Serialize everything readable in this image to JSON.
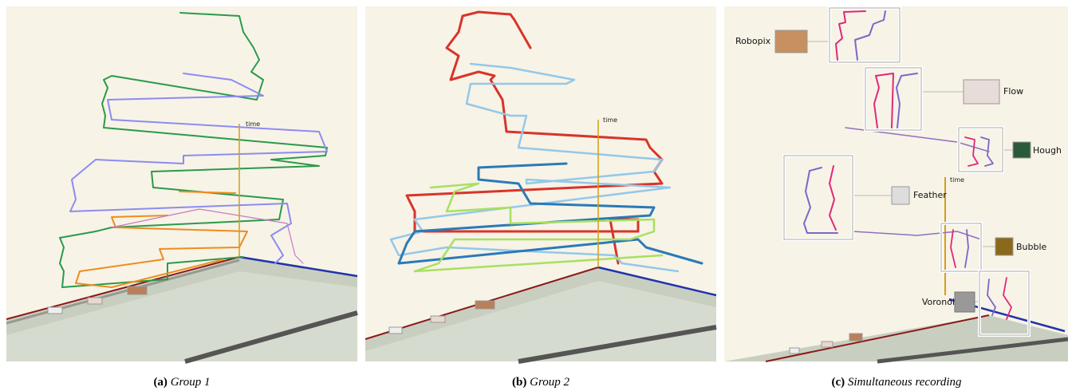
{
  "panels": [
    {
      "label": "(a)",
      "caption": "Group 1",
      "axis_label": "time"
    },
    {
      "label": "(b)",
      "caption": "Group 2",
      "axis_label": "time"
    },
    {
      "label": "(c)",
      "caption": "Simultaneous recording",
      "axis_label": "time",
      "annotations": [
        "Robopix",
        "Flow",
        "Hough",
        "Feather",
        "Bubble",
        "Voronoi"
      ]
    }
  ]
}
